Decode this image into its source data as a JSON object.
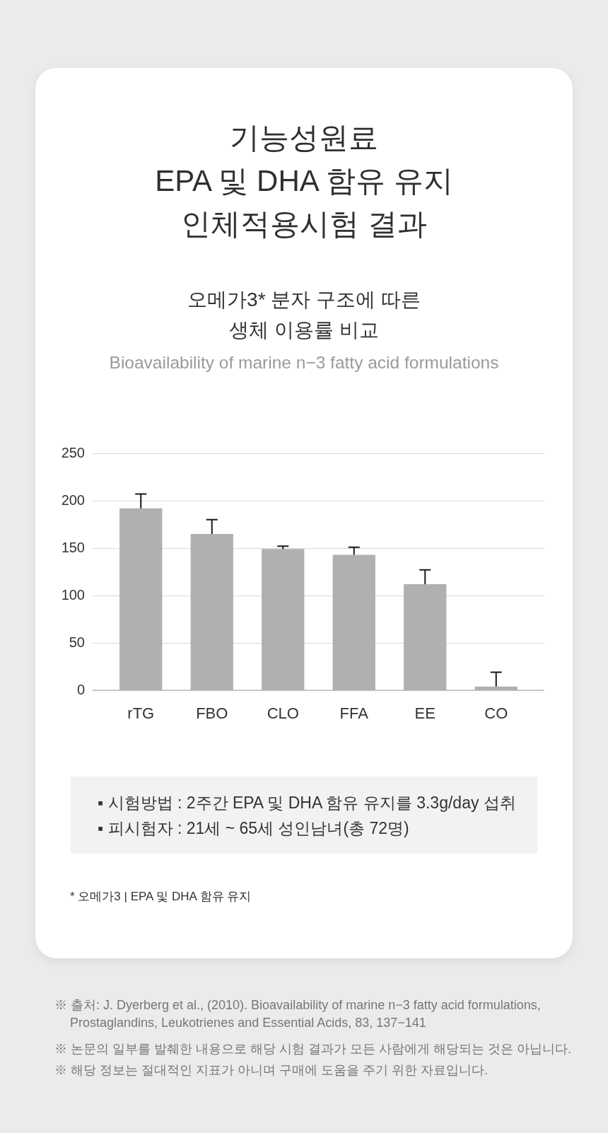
{
  "chart_data": {
    "type": "bar",
    "title": "기능성원료\nEPA 및 DHA 함유 유지\n인체적용시험 결과",
    "subtitle": "오메가3* 분자 구조에 따른\n생체 이용률 비교",
    "categories": [
      "rTG",
      "FBO",
      "CLO",
      "FFA",
      "EE",
      "CO"
    ],
    "values": [
      192,
      165,
      149,
      143,
      112,
      4
    ],
    "errors": [
      [
        192,
        207
      ],
      [
        165,
        180
      ],
      [
        149,
        152
      ],
      [
        143,
        151
      ],
      [
        112,
        127
      ],
      [
        4,
        19
      ]
    ],
    "color": "#b0b0b0",
    "ylim": [
      0,
      250
    ],
    "yticks": [
      0,
      50,
      100,
      150,
      200,
      250
    ],
    "grid": "y",
    "annotations": [
      "Bioavailability of marine n−3 fatty acid formulations",
      "▪ 시험방법 : 2주간 EPA 및 DHA 함유 유지를 3.3g/day 섭취",
      "▪ 피시험자 : 21세 ~ 65세 성인남녀(총 72명)",
      "* 오메가3 | EPA 및 DHA 함유 유지",
      "※ 출처: J. Dyerberg et al., (2010). Bioavailability of marine n−3 fatty acid formulations,\nProstaglandins, Leukotrienes and Essential Acids, 83, 137−141",
      "※ 논문의 일부를 발췌한 내용으로 해당 시험 결과가 모든 사람에게 해당되는 것은 아닙니다.",
      "※ 해당 정보는 절대적인 지표가 아니며 구매에 도움을 주기 위한 자료입니다."
    ]
  }
}
